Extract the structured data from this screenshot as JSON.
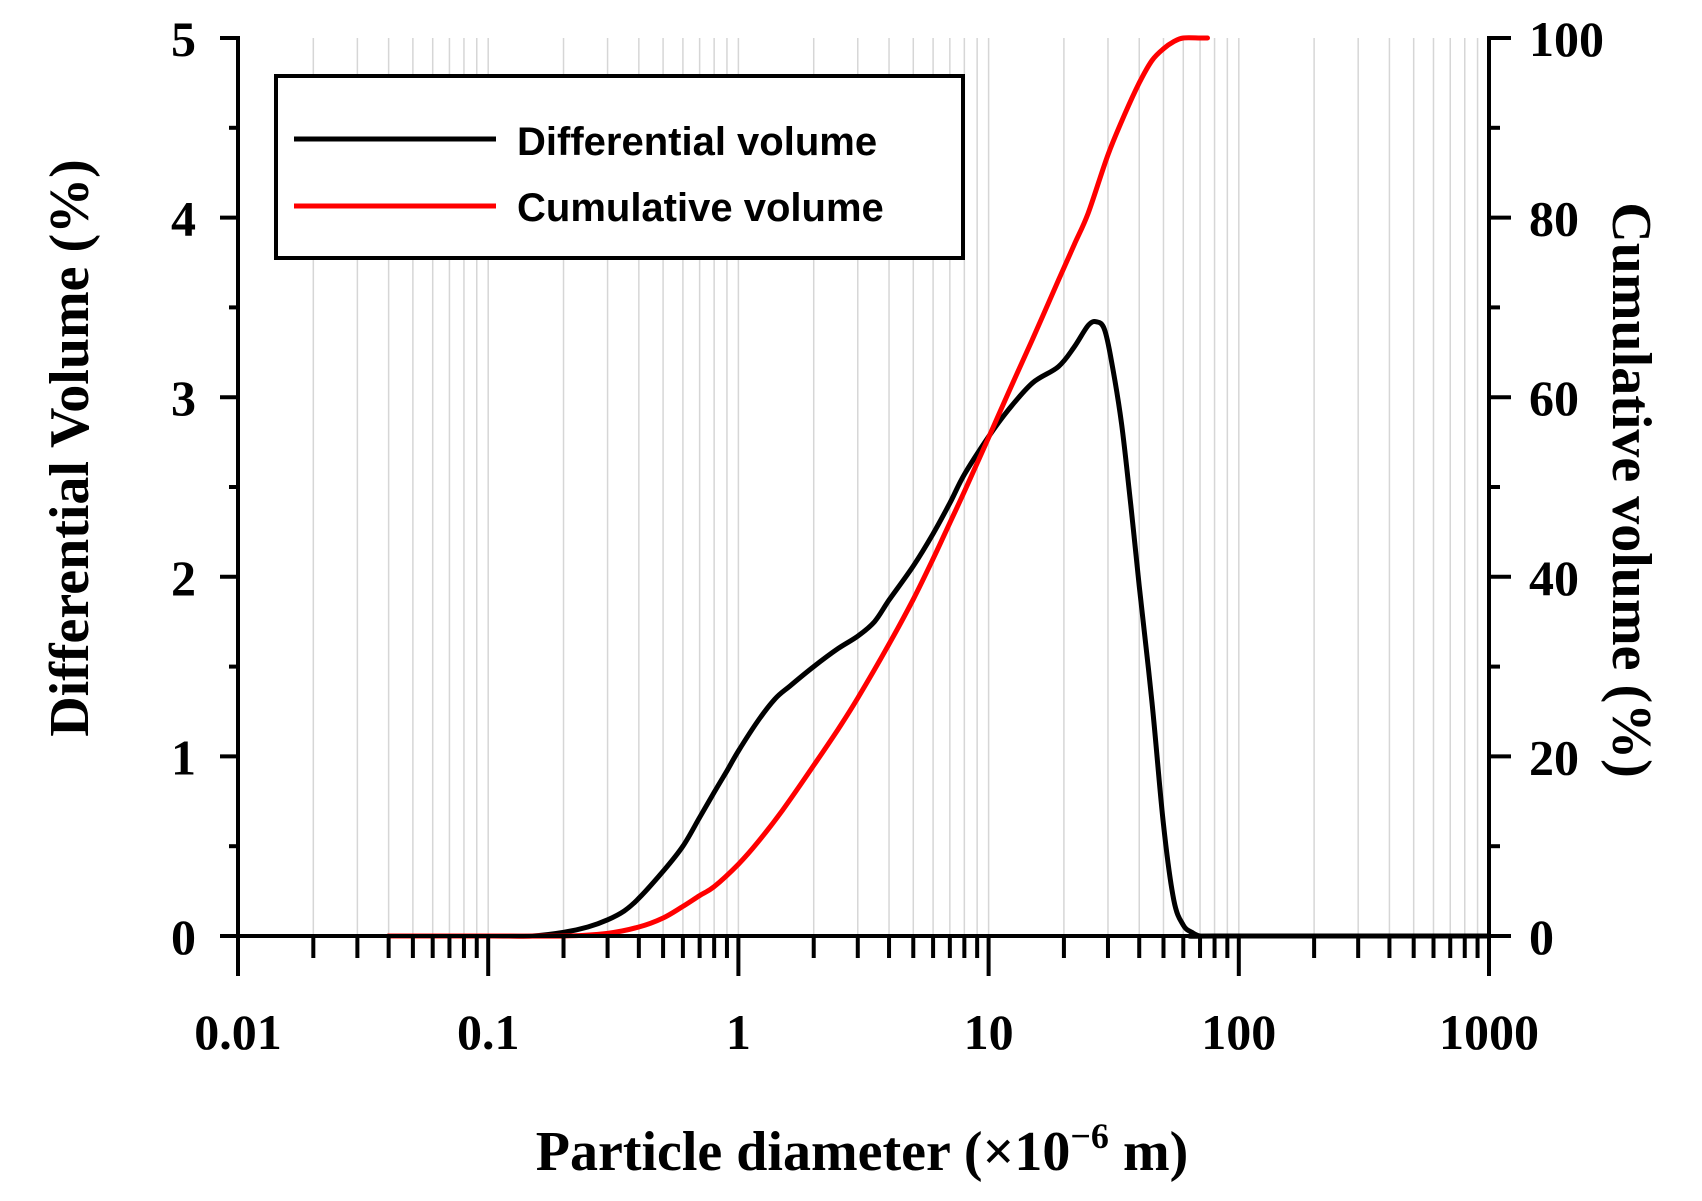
{
  "chart_data": {
    "type": "line",
    "xscale": "log",
    "xlim": [
      0.01,
      1000
    ],
    "ylim_left": [
      0,
      5
    ],
    "ylim_right": [
      0,
      100
    ],
    "xlabel_main": "Particle diameter (",
    "xlabel_times": "×10",
    "xlabel_exp": "−6",
    "xlabel_end": " m)",
    "ylabel_left": "Differential Volume (%)",
    "ylabel_right": "Cumulative volume (%)",
    "x_tick_labels": [
      "0.01",
      "0.1",
      "1",
      "10",
      "100",
      "1000"
    ],
    "x_tick_values": [
      0.01,
      0.1,
      1,
      10,
      100,
      1000
    ],
    "y_left_tick_labels": [
      "0",
      "1",
      "2",
      "3",
      "4",
      "5"
    ],
    "y_left_tick_values": [
      0,
      1,
      2,
      3,
      4,
      5
    ],
    "y_right_tick_labels": [
      "0",
      "20",
      "40",
      "60",
      "80",
      "100"
    ],
    "y_right_tick_values": [
      0,
      20,
      40,
      60,
      80,
      100
    ],
    "grid": true,
    "legend": {
      "placement": "top-left",
      "entries": [
        "Differential volume",
        "Cumulative volume"
      ]
    },
    "series": [
      {
        "name": "Differential volume",
        "axis": "left",
        "color": "#000000",
        "x": [
          0.04,
          0.1,
          0.15,
          0.2,
          0.25,
          0.3,
          0.35,
          0.4,
          0.5,
          0.6,
          0.7,
          0.8,
          0.9,
          1.0,
          1.2,
          1.4,
          1.6,
          2.0,
          2.5,
          3.0,
          3.5,
          4.0,
          5.0,
          6.0,
          7.0,
          8.0,
          10,
          12,
          15,
          19,
          22,
          25,
          27,
          29,
          31,
          34,
          37,
          40,
          45,
          50,
          55,
          60,
          65,
          70,
          80,
          1000
        ],
        "y": [
          0,
          0,
          0,
          0.02,
          0.05,
          0.09,
          0.14,
          0.21,
          0.36,
          0.5,
          0.66,
          0.8,
          0.92,
          1.03,
          1.2,
          1.32,
          1.39,
          1.5,
          1.6,
          1.67,
          1.75,
          1.87,
          2.06,
          2.24,
          2.41,
          2.57,
          2.78,
          2.93,
          3.08,
          3.17,
          3.28,
          3.4,
          3.42,
          3.38,
          3.2,
          2.85,
          2.4,
          1.95,
          1.3,
          0.62,
          0.2,
          0.06,
          0.02,
          0.0,
          0.0,
          0.0
        ]
      },
      {
        "name": "Cumulative volume",
        "axis": "right",
        "color": "#ff0000",
        "x": [
          0.04,
          0.1,
          0.2,
          0.3,
          0.4,
          0.5,
          0.6,
          0.7,
          0.8,
          1.0,
          1.2,
          1.5,
          2.0,
          2.5,
          3.0,
          4.0,
          5.0,
          6.0,
          7.0,
          8.0,
          10,
          12,
          15,
          19,
          22,
          25,
          30,
          35,
          40,
          45,
          50,
          55,
          60,
          70,
          75
        ],
        "y": [
          0,
          0,
          0,
          0.3,
          1.0,
          2.0,
          3.3,
          4.5,
          5.5,
          8.0,
          10.5,
          14.0,
          19.0,
          23.0,
          26.5,
          32.5,
          37.5,
          42.0,
          46.0,
          49.5,
          55.5,
          60.5,
          66.5,
          73.0,
          77.0,
          80.5,
          87.0,
          91.5,
          95.0,
          97.5,
          98.8,
          99.6,
          100,
          100,
          100
        ]
      }
    ]
  }
}
